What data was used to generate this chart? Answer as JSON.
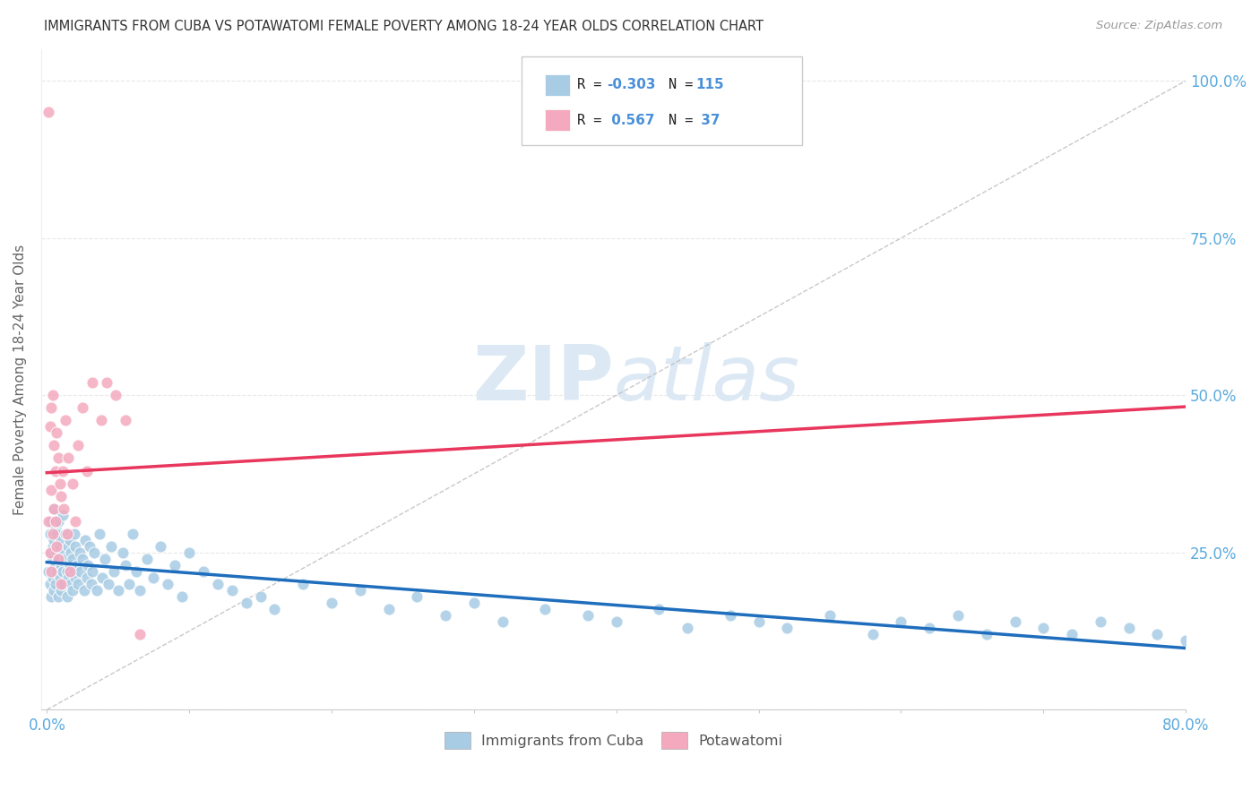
{
  "title": "IMMIGRANTS FROM CUBA VS POTAWATOMI FEMALE POVERTY AMONG 18-24 YEAR OLDS CORRELATION CHART",
  "source": "Source: ZipAtlas.com",
  "ylabel": "Female Poverty Among 18-24 Year Olds",
  "xlim": [
    0.0,
    0.8
  ],
  "ylim": [
    0.0,
    1.05
  ],
  "color_blue": "#a8cce4",
  "color_pink": "#f4a9bf",
  "color_blue_line": "#1f6ebd",
  "color_pink_line": "#e8365d",
  "color_text_blue": "#4a90d9",
  "color_axis_label": "#5aaadd",
  "watermark_color": "#dce9f5",
  "background": "#ffffff",
  "grid_color": "#e8e8e8",
  "cuba_x": [
    0.001,
    0.002,
    0.002,
    0.003,
    0.003,
    0.003,
    0.004,
    0.004,
    0.004,
    0.005,
    0.005,
    0.005,
    0.006,
    0.006,
    0.006,
    0.007,
    0.007,
    0.007,
    0.008,
    0.008,
    0.008,
    0.009,
    0.009,
    0.01,
    0.01,
    0.01,
    0.011,
    0.011,
    0.012,
    0.012,
    0.013,
    0.013,
    0.014,
    0.014,
    0.015,
    0.015,
    0.016,
    0.016,
    0.017,
    0.017,
    0.018,
    0.018,
    0.019,
    0.019,
    0.02,
    0.02,
    0.021,
    0.022,
    0.023,
    0.024,
    0.025,
    0.026,
    0.027,
    0.028,
    0.029,
    0.03,
    0.031,
    0.032,
    0.033,
    0.035,
    0.037,
    0.039,
    0.041,
    0.043,
    0.045,
    0.047,
    0.05,
    0.053,
    0.055,
    0.058,
    0.06,
    0.063,
    0.065,
    0.07,
    0.075,
    0.08,
    0.085,
    0.09,
    0.095,
    0.1,
    0.11,
    0.12,
    0.13,
    0.14,
    0.15,
    0.16,
    0.18,
    0.2,
    0.22,
    0.24,
    0.26,
    0.28,
    0.3,
    0.32,
    0.35,
    0.38,
    0.4,
    0.43,
    0.45,
    0.48,
    0.5,
    0.52,
    0.55,
    0.58,
    0.6,
    0.62,
    0.64,
    0.66,
    0.68,
    0.7,
    0.72,
    0.74,
    0.76,
    0.78,
    0.8
  ],
  "cuba_y": [
    0.22,
    0.28,
    0.2,
    0.3,
    0.25,
    0.18,
    0.26,
    0.21,
    0.24,
    0.32,
    0.19,
    0.27,
    0.23,
    0.29,
    0.2,
    0.25,
    0.22,
    0.28,
    0.24,
    0.18,
    0.3,
    0.21,
    0.26,
    0.27,
    0.23,
    0.19,
    0.31,
    0.22,
    0.25,
    0.2,
    0.28,
    0.24,
    0.22,
    0.18,
    0.26,
    0.21,
    0.23,
    0.27,
    0.2,
    0.25,
    0.19,
    0.24,
    0.22,
    0.28,
    0.21,
    0.26,
    0.23,
    0.2,
    0.25,
    0.22,
    0.24,
    0.19,
    0.27,
    0.21,
    0.23,
    0.26,
    0.2,
    0.22,
    0.25,
    0.19,
    0.28,
    0.21,
    0.24,
    0.2,
    0.26,
    0.22,
    0.19,
    0.25,
    0.23,
    0.2,
    0.28,
    0.22,
    0.19,
    0.24,
    0.21,
    0.26,
    0.2,
    0.23,
    0.18,
    0.25,
    0.22,
    0.2,
    0.19,
    0.17,
    0.18,
    0.16,
    0.2,
    0.17,
    0.19,
    0.16,
    0.18,
    0.15,
    0.17,
    0.14,
    0.16,
    0.15,
    0.14,
    0.16,
    0.13,
    0.15,
    0.14,
    0.13,
    0.15,
    0.12,
    0.14,
    0.13,
    0.15,
    0.12,
    0.14,
    0.13,
    0.12,
    0.14,
    0.13,
    0.12,
    0.11
  ],
  "pota_x": [
    0.001,
    0.001,
    0.002,
    0.002,
    0.003,
    0.003,
    0.003,
    0.004,
    0.004,
    0.005,
    0.005,
    0.006,
    0.006,
    0.007,
    0.007,
    0.008,
    0.008,
    0.009,
    0.01,
    0.01,
    0.011,
    0.012,
    0.013,
    0.014,
    0.015,
    0.016,
    0.018,
    0.02,
    0.022,
    0.025,
    0.028,
    0.032,
    0.038,
    0.042,
    0.048,
    0.055,
    0.065
  ],
  "pota_y": [
    0.95,
    0.3,
    0.45,
    0.25,
    0.48,
    0.35,
    0.22,
    0.5,
    0.28,
    0.42,
    0.32,
    0.38,
    0.3,
    0.44,
    0.26,
    0.4,
    0.24,
    0.36,
    0.34,
    0.2,
    0.38,
    0.32,
    0.46,
    0.28,
    0.4,
    0.22,
    0.36,
    0.3,
    0.42,
    0.48,
    0.38,
    0.52,
    0.46,
    0.52,
    0.5,
    0.46,
    0.12
  ]
}
